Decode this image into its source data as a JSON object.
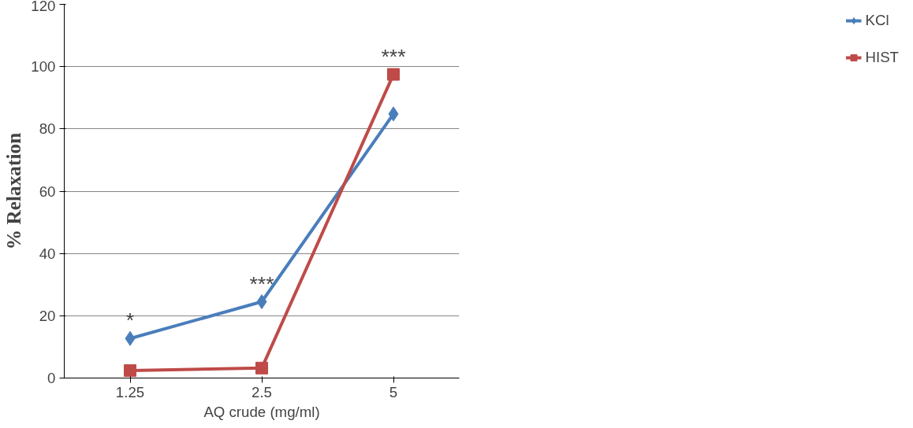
{
  "chart_data": {
    "type": "line",
    "xlabel": "AQ crude (mg/ml)",
    "ylabel": "% Relaxation",
    "categories": [
      "1.25",
      "2.5",
      "5"
    ],
    "series": [
      {
        "name": "KCl",
        "color": "#4a7ebb",
        "marker": "diamond",
        "values": [
          12.7,
          24.5,
          84.8
        ]
      },
      {
        "name": "HIST",
        "color": "#be4b48",
        "marker": "square",
        "values": [
          2.4,
          3.2,
          97.5
        ]
      }
    ],
    "ylim": [
      0,
      120
    ],
    "yticks": [
      0,
      20,
      40,
      60,
      80,
      100,
      120
    ],
    "grid": "y",
    "legend": "right",
    "line_style": "solid",
    "annotations": [
      {
        "text": "*",
        "x": "1.25",
        "y": 12.7
      },
      {
        "text": "***",
        "x": "2.5",
        "y": 24.5
      },
      {
        "text": "***",
        "x": "5",
        "y": 97.5
      }
    ]
  }
}
